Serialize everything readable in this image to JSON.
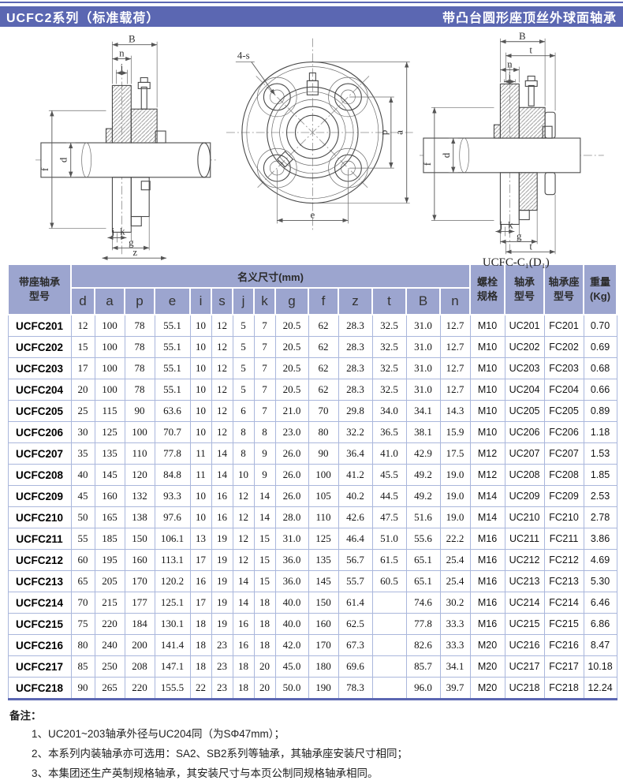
{
  "header": {
    "left_title": "UCFC2系列（标准载荷）",
    "right_title": "带凸台圆形座顶丝外球面轴承"
  },
  "colors": {
    "accent_bar": "#5b67b2",
    "table_header_bg": "#9ca5cf",
    "cell_border": "#aab7dc"
  },
  "drawings": {
    "left": {
      "top_labels": [
        "B",
        "n",
        "i"
      ],
      "left_labels": [
        "f",
        "d"
      ],
      "bottom_labels": [
        "j",
        "k",
        "g",
        "z"
      ]
    },
    "middle": {
      "bolt_label": "4-s",
      "right_labels": [
        "p",
        "a"
      ],
      "bottom_label": "e"
    },
    "right": {
      "top_labels": [
        "B",
        "t",
        "n",
        "i"
      ],
      "left_labels": [
        "f",
        "d"
      ],
      "bottom_labels": [
        "j",
        "k",
        "g",
        "t"
      ],
      "caption": "UCFC-C₁(D₁)"
    }
  },
  "table": {
    "header": {
      "col1_line1": "带座轴承",
      "col1_line2": "型号",
      "dims_title": "名义尺寸(mm)",
      "dim_cols": [
        "d",
        "a",
        "p",
        "e",
        "i",
        "s",
        "j",
        "k",
        "g",
        "f",
        "z",
        "t",
        "B",
        "n"
      ],
      "bolt_line1": "螺栓",
      "bolt_line2": "规格",
      "bearing_line1": "轴承",
      "bearing_line2": "型号",
      "housing_line1": "轴承座",
      "housing_line2": "型号",
      "weight_line1": "重量",
      "weight_line2": "(Kg)"
    },
    "rows": [
      {
        "model": "UCFC201",
        "dims": [
          "12",
          "100",
          "78",
          "55.1",
          "10",
          "12",
          "5",
          "7",
          "20.5",
          "62",
          "28.3",
          "32.5",
          "31.0",
          "12.7"
        ],
        "bolt": "M10",
        "bearing": "UC201",
        "housing": "FC201",
        "weight": "0.70"
      },
      {
        "model": "UCFC202",
        "dims": [
          "15",
          "100",
          "78",
          "55.1",
          "10",
          "12",
          "5",
          "7",
          "20.5",
          "62",
          "28.3",
          "32.5",
          "31.0",
          "12.7"
        ],
        "bolt": "M10",
        "bearing": "UC202",
        "housing": "FC202",
        "weight": "0.69"
      },
      {
        "model": "UCFC203",
        "dims": [
          "17",
          "100",
          "78",
          "55.1",
          "10",
          "12",
          "5",
          "7",
          "20.5",
          "62",
          "28.3",
          "32.5",
          "31.0",
          "12.7"
        ],
        "bolt": "M10",
        "bearing": "UC203",
        "housing": "FC203",
        "weight": "0.68"
      },
      {
        "model": "UCFC204",
        "dims": [
          "20",
          "100",
          "78",
          "55.1",
          "10",
          "12",
          "5",
          "7",
          "20.5",
          "62",
          "28.3",
          "32.5",
          "31.0",
          "12.7"
        ],
        "bolt": "M10",
        "bearing": "UC204",
        "housing": "FC204",
        "weight": "0.66"
      },
      {
        "model": "UCFC205",
        "dims": [
          "25",
          "115",
          "90",
          "63.6",
          "10",
          "12",
          "6",
          "7",
          "21.0",
          "70",
          "29.8",
          "34.0",
          "34.1",
          "14.3"
        ],
        "bolt": "M10",
        "bearing": "UC205",
        "housing": "FC205",
        "weight": "0.89"
      },
      {
        "model": "UCFC206",
        "dims": [
          "30",
          "125",
          "100",
          "70.7",
          "10",
          "12",
          "8",
          "8",
          "23.0",
          "80",
          "32.2",
          "36.5",
          "38.1",
          "15.9"
        ],
        "bolt": "M10",
        "bearing": "UC206",
        "housing": "FC206",
        "weight": "1.18"
      },
      {
        "model": "UCFC207",
        "dims": [
          "35",
          "135",
          "110",
          "77.8",
          "11",
          "14",
          "8",
          "9",
          "26.0",
          "90",
          "36.4",
          "41.0",
          "42.9",
          "17.5"
        ],
        "bolt": "M12",
        "bearing": "UC207",
        "housing": "FC207",
        "weight": "1.53"
      },
      {
        "model": "UCFC208",
        "dims": [
          "40",
          "145",
          "120",
          "84.8",
          "11",
          "14",
          "10",
          "9",
          "26.0",
          "100",
          "41.2",
          "45.5",
          "49.2",
          "19.0"
        ],
        "bolt": "M12",
        "bearing": "UC208",
        "housing": "FC208",
        "weight": "1.85"
      },
      {
        "model": "UCFC209",
        "dims": [
          "45",
          "160",
          "132",
          "93.3",
          "10",
          "16",
          "12",
          "14",
          "26.0",
          "105",
          "40.2",
          "44.5",
          "49.2",
          "19.0"
        ],
        "bolt": "M14",
        "bearing": "UC209",
        "housing": "FC209",
        "weight": "2.53"
      },
      {
        "model": "UCFC210",
        "dims": [
          "50",
          "165",
          "138",
          "97.6",
          "10",
          "16",
          "12",
          "14",
          "28.0",
          "110",
          "42.6",
          "47.5",
          "51.6",
          "19.0"
        ],
        "bolt": "M14",
        "bearing": "UC210",
        "housing": "FC210",
        "weight": "2.78"
      },
      {
        "model": "UCFC211",
        "dims": [
          "55",
          "185",
          "150",
          "106.1",
          "13",
          "19",
          "12",
          "15",
          "31.0",
          "125",
          "46.4",
          "51.0",
          "55.6",
          "22.2"
        ],
        "bolt": "M16",
        "bearing": "UC211",
        "housing": "FC211",
        "weight": "3.86"
      },
      {
        "model": "UCFC212",
        "dims": [
          "60",
          "195",
          "160",
          "113.1",
          "17",
          "19",
          "12",
          "15",
          "36.0",
          "135",
          "56.7",
          "61.5",
          "65.1",
          "25.4"
        ],
        "bolt": "M16",
        "bearing": "UC212",
        "housing": "FC212",
        "weight": "4.69"
      },
      {
        "model": "UCFC213",
        "dims": [
          "65",
          "205",
          "170",
          "120.2",
          "16",
          "19",
          "14",
          "15",
          "36.0",
          "145",
          "55.7",
          "60.5",
          "65.1",
          "25.4"
        ],
        "bolt": "M16",
        "bearing": "UC213",
        "housing": "FC213",
        "weight": "5.30"
      },
      {
        "model": "UCFC214",
        "dims": [
          "70",
          "215",
          "177",
          "125.1",
          "17",
          "19",
          "14",
          "18",
          "40.0",
          "150",
          "61.4",
          "",
          "74.6",
          "30.2"
        ],
        "bolt": "M16",
        "bearing": "UC214",
        "housing": "FC214",
        "weight": "6.46"
      },
      {
        "model": "UCFC215",
        "dims": [
          "75",
          "220",
          "184",
          "130.1",
          "18",
          "19",
          "16",
          "18",
          "40.0",
          "160",
          "62.5",
          "",
          "77.8",
          "33.3"
        ],
        "bolt": "M16",
        "bearing": "UC215",
        "housing": "FC215",
        "weight": "6.86"
      },
      {
        "model": "UCFC216",
        "dims": [
          "80",
          "240",
          "200",
          "141.4",
          "18",
          "23",
          "16",
          "18",
          "42.0",
          "170",
          "67.3",
          "",
          "82.6",
          "33.3"
        ],
        "bolt": "M20",
        "bearing": "UC216",
        "housing": "FC216",
        "weight": "8.47"
      },
      {
        "model": "UCFC217",
        "dims": [
          "85",
          "250",
          "208",
          "147.1",
          "18",
          "23",
          "18",
          "20",
          "45.0",
          "180",
          "69.6",
          "",
          "85.7",
          "34.1"
        ],
        "bolt": "M20",
        "bearing": "UC217",
        "housing": "FC217",
        "weight": "10.18"
      },
      {
        "model": "UCFC218",
        "dims": [
          "90",
          "265",
          "220",
          "155.5",
          "22",
          "23",
          "18",
          "20",
          "50.0",
          "190",
          "78.3",
          "",
          "96.0",
          "39.7"
        ],
        "bolt": "M20",
        "bearing": "UC218",
        "housing": "FC218",
        "weight": "12.24"
      }
    ]
  },
  "notes": {
    "title": "备注：",
    "items": [
      "1、UC201~203轴承外径与UC204同（为SΦ47mm）；",
      "2、本系列内装轴承亦可选用：SA2、SB2系列等轴承，其轴承座安装尺寸相同；",
      "3、本集团还生产英制规格轴承，其安装尺寸与本页公制同规格轴承相同。"
    ]
  }
}
